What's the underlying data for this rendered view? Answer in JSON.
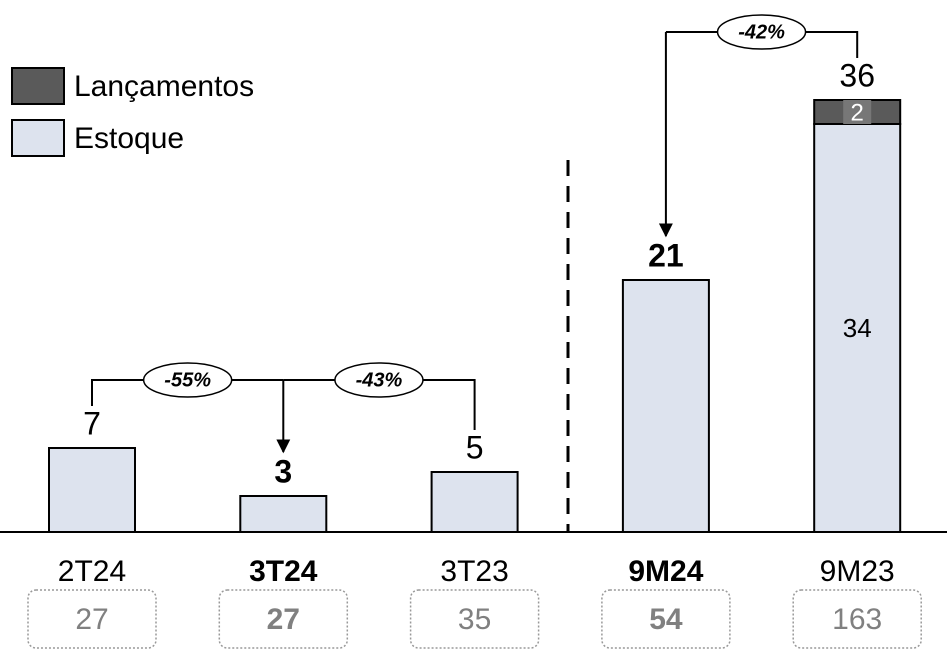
{
  "chart_data": {
    "type": "stacked_bar",
    "categories": [
      "2T24",
      "3T24",
      "3T23",
      "9M24",
      "9M23"
    ],
    "bold_categories": [
      "3T24",
      "9M24"
    ],
    "series": [
      {
        "name": "Estoque",
        "color": "#dde3ee",
        "values": [
          7,
          3,
          5,
          21,
          34
        ]
      },
      {
        "name": "Lançamentos",
        "color": "#5a5a5a",
        "values": [
          null,
          null,
          null,
          null,
          2
        ]
      }
    ],
    "totals": [
      7,
      3,
      5,
      21,
      36
    ],
    "footer_values": [
      27,
      27,
      35,
      54,
      163
    ],
    "comparisons": [
      {
        "from": 0,
        "to": 1,
        "label": "-55%"
      },
      {
        "from": 2,
        "to": 1,
        "label": "-43%"
      },
      {
        "from": 4,
        "to": 3,
        "label": "-42%"
      }
    ],
    "ylim": [
      0,
      44
    ],
    "legend": "top-left"
  }
}
